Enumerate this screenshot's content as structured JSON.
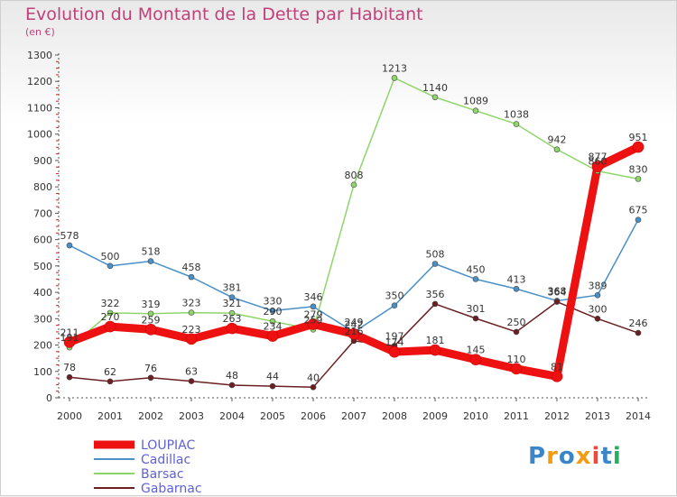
{
  "brand": "Proxiti",
  "chart_data": {
    "type": "line",
    "title": "Evolution du Montant de la Dette par Habitant",
    "subtitle": "(en €)",
    "x": [
      "2000",
      "2001",
      "2002",
      "2003",
      "2004",
      "2005",
      "2006",
      "2007",
      "2008",
      "2009",
      "2010",
      "2011",
      "2012",
      "2013",
      "2014"
    ],
    "ylim": [
      0,
      1300
    ],
    "yticks": [
      0,
      100,
      200,
      300,
      400,
      500,
      600,
      700,
      800,
      900,
      1000,
      1100,
      1200,
      1300
    ],
    "grid": false,
    "legend_position": "bottom-left",
    "series": [
      {
        "name": "LOUPIAC",
        "color": "#ee1111",
        "values": [
          211,
          270,
          259,
          223,
          263,
          234,
          279,
          242,
          174,
          181,
          145,
          110,
          81,
          877,
          951
        ]
      },
      {
        "name": "Cadillac",
        "color": "#4a90c8",
        "values": [
          578,
          500,
          518,
          458,
          381,
          330,
          346,
          249,
          350,
          508,
          450,
          413,
          368,
          389,
          675
        ]
      },
      {
        "name": "Barsac",
        "color": "#8fd66a",
        "values": [
          191,
          322,
          319,
          323,
          321,
          290,
          259,
          808,
          1213,
          1140,
          1089,
          1038,
          942,
          860,
          830
        ]
      },
      {
        "name": "Gabarnac",
        "color": "#6b1f22",
        "values": [
          78,
          62,
          76,
          63,
          48,
          44,
          40,
          216,
          197,
          356,
          301,
          250,
          364,
          300,
          246
        ]
      }
    ]
  }
}
